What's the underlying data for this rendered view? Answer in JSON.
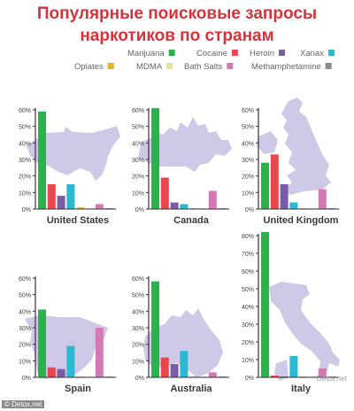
{
  "title": {
    "line1": "Популярные поисковые запросы",
    "line2": "наркотиков по странам"
  },
  "legend": [
    {
      "name": "Marijuana",
      "color": "#2cb24b"
    },
    {
      "name": "Cocaine",
      "color": "#e8474f"
    },
    {
      "name": "Heroin",
      "color": "#7b5ca8"
    },
    {
      "name": "Xanax",
      "color": "#29b9d3"
    },
    {
      "name": "Opiates",
      "color": "#e8b12c"
    },
    {
      "name": "MDMA",
      "color": "#e8e1a4"
    },
    {
      "name": "Bath Salts",
      "color": "#d27ab4"
    },
    {
      "name": "Methamphetamine",
      "color": "#8a8a8a"
    }
  ],
  "chart_data": [
    {
      "type": "bar",
      "country": "United States",
      "ylim": [
        0,
        60
      ],
      "yticks": [
        "0%",
        "10%",
        "20%",
        "30%",
        "40%",
        "50%",
        "60%"
      ],
      "categories": [
        "Marijuana",
        "Cocaine",
        "Heroin",
        "Xanax",
        "Opiates",
        "MDMA",
        "Bath Salts",
        "Methamphetamine"
      ],
      "values": [
        59,
        15,
        8,
        15,
        1,
        0.5,
        3,
        0.5
      ]
    },
    {
      "type": "bar",
      "country": "Canada",
      "ylim": [
        0,
        60
      ],
      "yticks": [
        "0%",
        "10%",
        "20%",
        "30%",
        "40%",
        "50%",
        "60%"
      ],
      "categories": [
        "Marijuana",
        "Cocaine",
        "Heroin",
        "Xanax",
        "Opiates",
        "MDMA",
        "Bath Salts",
        "Methamphetamine"
      ],
      "values": [
        61,
        19,
        4,
        3,
        0.5,
        0.5,
        11,
        0.5
      ]
    },
    {
      "type": "bar",
      "country": "United Kingdom",
      "ylim": [
        0,
        60
      ],
      "yticks": [
        "0%",
        "10%",
        "20%",
        "30%",
        "40%",
        "50%",
        "60%"
      ],
      "categories": [
        "Marijuana",
        "Cocaine",
        "Heroin",
        "Xanax",
        "Opiates",
        "MDMA",
        "Bath Salts",
        "Methamphetamine"
      ],
      "values": [
        28,
        33,
        15,
        4,
        0.5,
        0.5,
        12,
        0.5
      ]
    },
    {
      "type": "bar",
      "country": "Spain",
      "ylim": [
        0,
        60
      ],
      "yticks": [
        "0%",
        "10%",
        "20%",
        "30%",
        "40%",
        "50%",
        "60%"
      ],
      "categories": [
        "Marijuana",
        "Cocaine",
        "Heroin",
        "Xanax",
        "Opiates",
        "MDMA",
        "Bath Salts",
        "Methamphetamine"
      ],
      "values": [
        41,
        6,
        5,
        19,
        0.5,
        0.5,
        30,
        0.5
      ]
    },
    {
      "type": "bar",
      "country": "Australia",
      "ylim": [
        0,
        60
      ],
      "yticks": [
        "0%",
        "10%",
        "20%",
        "30%",
        "40%",
        "50%",
        "60%"
      ],
      "categories": [
        "Marijuana",
        "Cocaine",
        "Heroin",
        "Xanax",
        "Opiates",
        "MDMA",
        "Bath Salts",
        "Methamphetamine"
      ],
      "values": [
        58,
        12,
        8,
        16,
        0.5,
        0.5,
        3,
        0.5
      ]
    },
    {
      "type": "bar",
      "country": "Italy",
      "ylim": [
        0,
        80
      ],
      "yticks": [
        "0%",
        "10%",
        "20%",
        "30%",
        "40%",
        "50%",
        "60%",
        "70%",
        "80%"
      ],
      "categories": [
        "Marijuana",
        "Cocaine",
        "Heroin",
        "Xanax",
        "Opiates",
        "MDMA",
        "Bath Salts",
        "Methamphetamine"
      ],
      "values": [
        82,
        1,
        0.5,
        12,
        0.5,
        0.5,
        5,
        0.5
      ]
    }
  ],
  "credit": "Detox.net",
  "watermark": "© Detox.net"
}
